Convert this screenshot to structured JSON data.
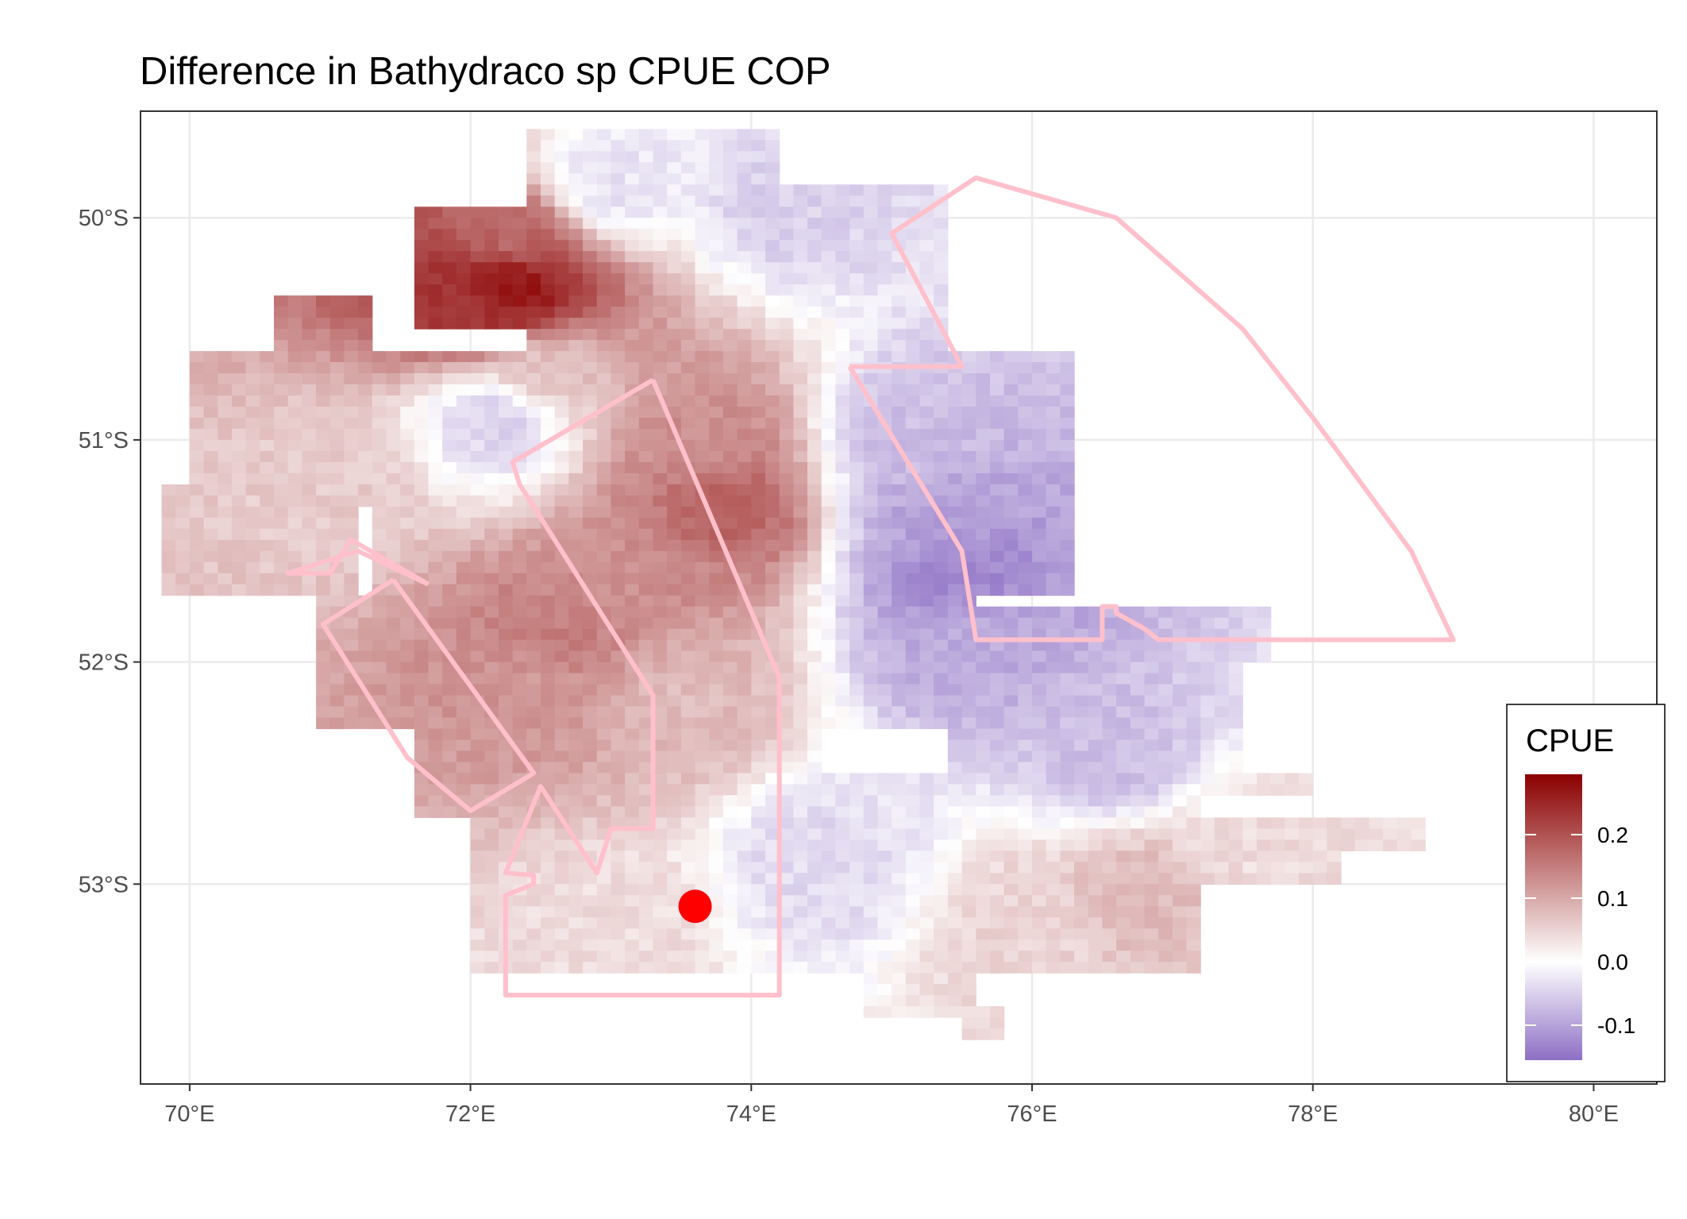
{
  "title": "Difference in  Bathydraco sp CPUE COP",
  "map": {
    "x_label": "",
    "y_label": "",
    "x_range": [
      69.65,
      80.45
    ],
    "y_range": [
      -53.9,
      -49.52
    ],
    "x_ticks": [
      {
        "value": 70,
        "label": "70°E"
      },
      {
        "value": 72,
        "label": "72°E"
      },
      {
        "value": 74,
        "label": "74°E"
      },
      {
        "value": 76,
        "label": "76°E"
      },
      {
        "value": 78,
        "label": "78°E"
      },
      {
        "value": 80,
        "label": "80°E"
      }
    ],
    "y_ticks": [
      {
        "value": -50,
        "label": "50°S"
      },
      {
        "value": -51,
        "label": "51°S"
      },
      {
        "value": -52,
        "label": "52°S"
      },
      {
        "value": -53,
        "label": "53°S"
      }
    ],
    "grid": true,
    "cell_size_deg": [
      0.1,
      0.05
    ]
  },
  "legend": {
    "title": "CPUE",
    "position": "bottom-right",
    "range": [
      -0.155,
      0.295
    ],
    "colors": {
      "low": "#8d6fc4",
      "mid": "#ffffff",
      "high": "#8b0000"
    },
    "ticks": [
      {
        "value": 0.2,
        "label": "0.2"
      },
      {
        "value": 0.1,
        "label": "0.1"
      },
      {
        "value": 0.0,
        "label": "0.0"
      },
      {
        "value": -0.1,
        "label": "-0.1"
      }
    ]
  },
  "boundary_color": "#ffc0cb",
  "point_color": "#ff0000",
  "marked_point": {
    "lon": 73.6,
    "lat": -53.1
  },
  "chart_data": {
    "type": "heatmap",
    "value_name": "CPUE",
    "x_unit": "°E longitude",
    "y_unit": "°S latitude",
    "hotspots": [
      {
        "lon": 72.3,
        "lat": -50.3,
        "value": 0.28
      },
      {
        "lon": 72.1,
        "lat": -50.4,
        "value": 0.24
      },
      {
        "lon": 72.3,
        "lat": -50.1,
        "value": 0.17
      },
      {
        "lon": 73.8,
        "lat": -51.3,
        "value": 0.18
      },
      {
        "lon": 73.6,
        "lat": -51.0,
        "value": 0.13
      },
      {
        "lon": 72.6,
        "lat": -51.9,
        "value": 0.15
      },
      {
        "lon": 73.2,
        "lat": -51.6,
        "value": 0.13
      },
      {
        "lon": 72.5,
        "lat": -52.1,
        "value": 0.12
      },
      {
        "lon": 73.5,
        "lat": -52.2,
        "value": 0.08
      },
      {
        "lon": 71.0,
        "lat": -51.2,
        "value": 0.06
      },
      {
        "lon": 72.5,
        "lat": -50.7,
        "value": 0.07
      },
      {
        "lon": 75.5,
        "lat": -51.6,
        "value": -0.13
      },
      {
        "lon": 75.4,
        "lat": -51.3,
        "value": -0.1
      },
      {
        "lon": 75.6,
        "lat": -51.9,
        "value": -0.09
      },
      {
        "lon": 75.2,
        "lat": -51.0,
        "value": -0.07
      },
      {
        "lon": 76.6,
        "lat": -52.4,
        "value": -0.07
      },
      {
        "lon": 72.2,
        "lat": -50.9,
        "value": -0.05
      },
      {
        "lon": 73.0,
        "lat": -49.85,
        "value": -0.03
      },
      {
        "lon": 74.3,
        "lat": -49.95,
        "value": -0.05
      },
      {
        "lon": 76.8,
        "lat": -53.05,
        "value": 0.08
      },
      {
        "lon": 77.5,
        "lat": -52.8,
        "value": 0.04
      },
      {
        "lon": 73.0,
        "lat": -53.2,
        "value": 0.04
      },
      {
        "lon": 74.5,
        "lat": -52.9,
        "value": -0.04
      },
      {
        "lon": 76.0,
        "lat": -53.2,
        "value": 0.05
      }
    ],
    "regions": [
      {
        "lon": [
          71.6,
          72.4
        ],
        "lat": [
          -49.95,
          -50.5
        ]
      },
      {
        "lon": [
          70.6,
          71.3
        ],
        "lat": [
          -50.35,
          -50.6
        ]
      },
      {
        "lon": [
          72.4,
          74.2
        ],
        "lat": [
          -49.6,
          -50.6
        ]
      },
      {
        "lon": [
          74.2,
          75.4
        ],
        "lat": [
          -49.85,
          -50.6
        ]
      },
      {
        "lon": [
          70.0,
          71.3
        ],
        "lat": [
          -50.6,
          -51.3
        ]
      },
      {
        "lon": [
          69.8,
          71.2
        ],
        "lat": [
          -51.2,
          -51.7
        ]
      },
      {
        "lon": [
          71.3,
          76.3
        ],
        "lat": [
          -50.6,
          -51.7
        ]
      },
      {
        "lon": [
          70.9,
          75.6
        ],
        "lat": [
          -51.7,
          -52.3
        ]
      },
      {
        "lon": [
          75.6,
          77.7
        ],
        "lat": [
          -51.75,
          -52.0
        ]
      },
      {
        "lon": [
          75.4,
          77.5
        ],
        "lat": [
          -52.0,
          -52.5
        ]
      },
      {
        "lon": [
          71.6,
          74.5
        ],
        "lat": [
          -52.3,
          -52.7
        ]
      },
      {
        "lon": [
          74.5,
          77.2
        ],
        "lat": [
          -52.5,
          -52.7
        ]
      },
      {
        "lon": [
          77.2,
          78.0
        ],
        "lat": [
          -52.5,
          -52.6
        ]
      },
      {
        "lon": [
          72.0,
          77.2
        ],
        "lat": [
          -52.7,
          -53.4
        ]
      },
      {
        "lon": [
          77.2,
          78.2
        ],
        "lat": [
          -52.7,
          -53.0
        ]
      },
      {
        "lon": [
          78.2,
          78.8
        ],
        "lat": [
          -52.7,
          -52.85
        ]
      },
      {
        "lon": [
          74.8,
          75.6
        ],
        "lat": [
          -53.4,
          -53.6
        ]
      },
      {
        "lon": [
          75.5,
          75.8
        ],
        "lat": [
          -53.55,
          -53.7
        ]
      }
    ],
    "boundaries": [
      {
        "lon": [
          71.7,
          71.2,
          70.7,
          71.0,
          71.15,
          71.7
        ],
        "lat": [
          -51.65,
          -51.5,
          -51.6,
          -51.6,
          -51.45,
          -51.65
        ]
      },
      {
        "lon": [
          71.45,
          70.95,
          71.55,
          72.0,
          72.4,
          72.45,
          71.45
        ],
        "lat": [
          -51.63,
          -51.83,
          -52.43,
          -52.67,
          -52.52,
          -52.5,
          -51.63
        ]
      },
      {
        "lon": [
          73.3,
          72.3,
          72.35,
          73.3,
          73.3,
          73.0,
          72.9,
          72.5,
          72.25,
          72.45,
          72.45,
          72.25,
          72.25,
          74.2,
          74.2,
          73.3
        ],
        "lat": [
          -50.73,
          -51.1,
          -51.2,
          -52.15,
          -52.75,
          -52.75,
          -52.95,
          -52.56,
          -52.95,
          -52.96,
          -53.0,
          -53.05,
          -53.5,
          -53.5,
          -52.07,
          -50.73
        ]
      },
      {
        "lon": [
          74.7,
          75.5,
          75.6,
          76.5,
          76.5,
          76.6,
          76.6,
          76.8,
          76.9,
          79.0,
          78.7,
          78.0,
          77.5,
          76.6,
          75.6,
          75.0,
          75.5,
          74.7
        ],
        "lat": [
          -50.67,
          -51.5,
          -51.9,
          -51.9,
          -51.75,
          -51.75,
          -51.78,
          -51.85,
          -51.9,
          -51.9,
          -51.5,
          -50.9,
          -50.5,
          -50.0,
          -49.82,
          -50.07,
          -50.67,
          -50.67
        ]
      }
    ]
  }
}
